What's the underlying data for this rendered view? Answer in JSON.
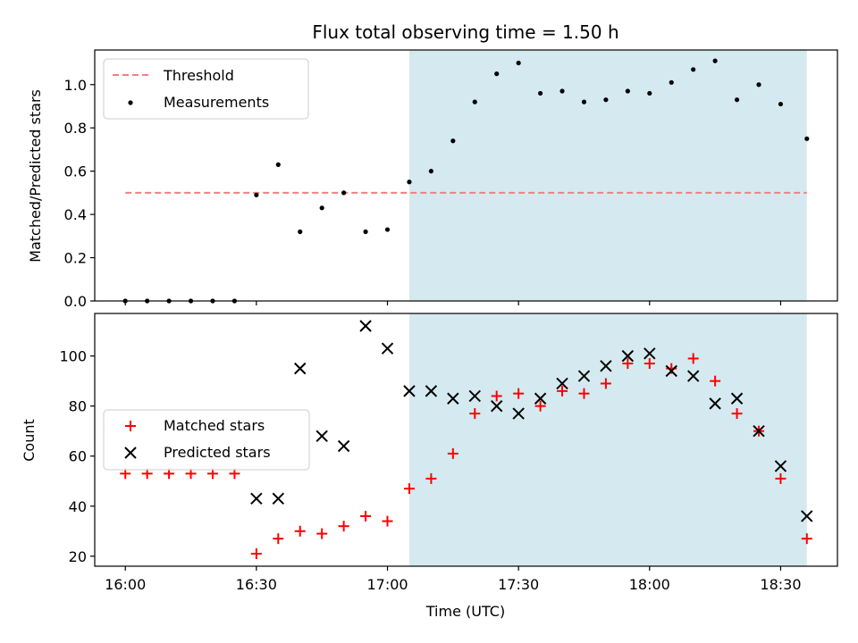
{
  "chart_data": [
    {
      "type": "scatter",
      "title": "Flux total observing time = 1.50 h",
      "xlabel": "",
      "ylabel": "Matched/Predicted stars",
      "x_unit": "time (UTC)",
      "xlim": [
        "15:53",
        "18:43"
      ],
      "ylim": [
        0,
        1.16
      ],
      "yticks": [
        "0.0",
        "0.2",
        "0.4",
        "0.6",
        "0.8",
        "1.0"
      ],
      "shaded_interval": {
        "start": "17:05",
        "end": "18:36",
        "color": "#d4eaf0"
      },
      "legend_position": "upper left",
      "series": [
        {
          "name": "Threshold",
          "style": "dashed-line",
          "color": "#f08080",
          "x": [
            "16:00",
            "18:36"
          ],
          "y": [
            0.5,
            0.5
          ]
        },
        {
          "name": "Measurements",
          "style": "dot",
          "color": "#000000",
          "x": [
            "16:00",
            "16:05",
            "16:10",
            "16:15",
            "16:20",
            "16:25",
            "16:30",
            "16:35",
            "16:40",
            "16:45",
            "16:50",
            "16:55",
            "17:00",
            "17:05",
            "17:10",
            "17:15",
            "17:20",
            "17:25",
            "17:30",
            "17:35",
            "17:40",
            "17:45",
            "17:50",
            "17:55",
            "18:00",
            "18:05",
            "18:10",
            "18:15",
            "18:20",
            "18:25",
            "18:30",
            "18:36"
          ],
          "y": [
            0,
            0,
            0,
            0,
            0,
            0,
            0.49,
            0.63,
            0.32,
            0.43,
            0.5,
            0.32,
            0.33,
            0.55,
            0.6,
            0.74,
            0.92,
            1.05,
            1.1,
            0.96,
            0.97,
            0.92,
            0.93,
            0.97,
            0.96,
            1.01,
            1.07,
            1.11,
            0.93,
            1.0,
            0.91,
            0.75
          ]
        }
      ]
    },
    {
      "type": "scatter",
      "title": "",
      "xlabel": "Time (UTC)",
      "ylabel": "Count",
      "xlim": [
        "15:53",
        "18:43"
      ],
      "ylim": [
        16,
        117
      ],
      "xticks": [
        "16:00",
        "16:30",
        "17:00",
        "17:30",
        "18:00",
        "18:30"
      ],
      "yticks": [
        "20",
        "40",
        "60",
        "80",
        "100"
      ],
      "shaded_interval": {
        "start": "17:05",
        "end": "18:36",
        "color": "#d4eaf0"
      },
      "legend_position": "center left",
      "series": [
        {
          "name": "Matched stars",
          "marker": "plus",
          "color": "#ff0000",
          "x": [
            "16:00",
            "16:05",
            "16:10",
            "16:15",
            "16:20",
            "16:25",
            "16:30",
            "16:35",
            "16:40",
            "16:45",
            "16:50",
            "16:55",
            "17:00",
            "17:05",
            "17:10",
            "17:15",
            "17:20",
            "17:25",
            "17:30",
            "17:35",
            "17:40",
            "17:45",
            "17:50",
            "17:55",
            "18:00",
            "18:05",
            "18:10",
            "18:15",
            "18:20",
            "18:25",
            "18:30",
            "18:36"
          ],
          "y": [
            53,
            53,
            53,
            53,
            53,
            53,
            21,
            27,
            30,
            29,
            32,
            36,
            34,
            47,
            51,
            61,
            77,
            84,
            85,
            80,
            86,
            85,
            89,
            97,
            97,
            95,
            99,
            90,
            77,
            70,
            51,
            27
          ]
        },
        {
          "name": "Predicted stars",
          "marker": "x",
          "color": "#000000",
          "x": [
            "16:30",
            "16:35",
            "16:40",
            "16:45",
            "16:50",
            "16:55",
            "17:00",
            "17:05",
            "17:10",
            "17:15",
            "17:20",
            "17:25",
            "17:30",
            "17:35",
            "17:40",
            "17:45",
            "17:50",
            "17:55",
            "18:00",
            "18:05",
            "18:10",
            "18:15",
            "18:20",
            "18:25",
            "18:30",
            "18:36"
          ],
          "y": [
            43,
            43,
            95,
            68,
            64,
            112,
            103,
            86,
            86,
            83,
            84,
            80,
            77,
            83,
            89,
            92,
            96,
            100,
            101,
            94,
            92,
            81,
            83,
            70,
            56,
            36
          ]
        }
      ]
    }
  ]
}
